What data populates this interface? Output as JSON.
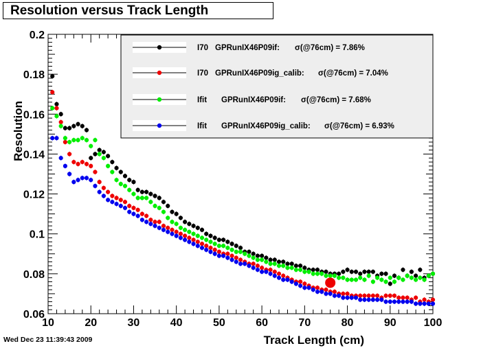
{
  "title": "Resolution versus Track Length",
  "timestamp": "Wed Dec 23 11:39:43 2009",
  "chart_data": {
    "type": "scatter",
    "title": "Resolution versus Track Length",
    "xlabel": "Track Length (cm)",
    "ylabel": "Resolution",
    "xlim": [
      10,
      100
    ],
    "ylim": [
      0.06,
      0.2
    ],
    "xticks": [
      "10",
      "20",
      "30",
      "40",
      "50",
      "60",
      "70",
      "80",
      "90",
      "100"
    ],
    "yticks": [
      "0.06",
      "0.08",
      "0.1",
      "0.12",
      "0.14",
      "0.16",
      "0.18",
      "0.2"
    ],
    "grid": true,
    "legend_position": "top-right",
    "x": [
      11,
      12,
      13,
      14,
      15,
      16,
      17,
      18,
      19,
      20,
      21,
      22,
      23,
      24,
      25,
      26,
      27,
      28,
      29,
      30,
      31,
      32,
      33,
      34,
      35,
      36,
      37,
      38,
      39,
      40,
      41,
      42,
      43,
      44,
      45,
      46,
      47,
      48,
      49,
      50,
      51,
      52,
      53,
      54,
      55,
      56,
      57,
      58,
      59,
      60,
      61,
      62,
      63,
      64,
      65,
      66,
      67,
      68,
      69,
      70,
      71,
      72,
      73,
      74,
      75,
      76,
      77,
      78,
      79,
      80,
      81,
      82,
      83,
      84,
      85,
      86,
      87,
      88,
      89,
      90,
      91,
      92,
      93,
      94,
      95,
      96,
      97,
      98,
      99,
      100
    ],
    "series": [
      {
        "name": "I70",
        "dataset": "GPRunIX46P09if:",
        "sigma_text": "σ(@76cm) =  7.86%",
        "color": "#000000",
        "values": [
          0.179,
          0.165,
          0.16,
          0.153,
          0.153,
          0.154,
          0.155,
          0.154,
          0.152,
          0.138,
          0.14,
          0.142,
          0.141,
          0.139,
          0.136,
          0.133,
          0.131,
          0.129,
          0.127,
          0.126,
          0.122,
          0.121,
          0.121,
          0.12,
          0.119,
          0.118,
          0.116,
          0.114,
          0.111,
          0.11,
          0.108,
          0.106,
          0.105,
          0.104,
          0.103,
          0.102,
          0.1,
          0.099,
          0.098,
          0.097,
          0.097,
          0.096,
          0.095,
          0.094,
          0.093,
          0.091,
          0.091,
          0.09,
          0.089,
          0.089,
          0.088,
          0.087,
          0.087,
          0.086,
          0.086,
          0.085,
          0.085,
          0.084,
          0.084,
          0.083,
          0.082,
          0.082,
          0.082,
          0.081,
          0.081,
          0.08,
          0.08,
          0.08,
          0.081,
          0.082,
          0.081,
          0.081,
          0.08,
          0.081,
          0.081,
          0.081,
          0.079,
          0.08,
          0.08,
          0.075,
          0.079,
          0.078,
          0.082,
          0.079,
          0.081,
          0.079,
          0.082,
          0.078,
          0.079,
          0.08
        ]
      },
      {
        "name": "I70",
        "dataset": "GPRunIX46P09ig_calib:",
        "sigma_text": "σ(@76cm) =  7.04%",
        "color": "#ee0000",
        "values": [
          0.171,
          0.163,
          0.156,
          0.146,
          0.14,
          0.136,
          0.135,
          0.136,
          0.135,
          0.134,
          0.131,
          0.126,
          0.123,
          0.121,
          0.119,
          0.118,
          0.117,
          0.116,
          0.114,
          0.113,
          0.112,
          0.11,
          0.109,
          0.107,
          0.106,
          0.106,
          0.104,
          0.103,
          0.102,
          0.101,
          0.1,
          0.099,
          0.098,
          0.097,
          0.096,
          0.095,
          0.094,
          0.093,
          0.092,
          0.091,
          0.09,
          0.09,
          0.089,
          0.088,
          0.087,
          0.086,
          0.085,
          0.085,
          0.084,
          0.083,
          0.082,
          0.082,
          0.081,
          0.08,
          0.079,
          0.078,
          0.077,
          0.076,
          0.076,
          0.075,
          0.074,
          0.073,
          0.073,
          0.072,
          0.072,
          0.071,
          0.071,
          0.07,
          0.07,
          0.07,
          0.069,
          0.069,
          0.069,
          0.069,
          0.069,
          0.069,
          0.069,
          0.068,
          0.069,
          0.069,
          0.069,
          0.068,
          0.068,
          0.068,
          0.067,
          0.068,
          0.066,
          0.067,
          0.066,
          0.067
        ]
      },
      {
        "name": "Ifit",
        "dataset": "GPRunIX46P09if:",
        "sigma_text": "σ(@76cm) =  7.68%",
        "color": "#00ee00",
        "values": [
          0.163,
          0.159,
          0.154,
          0.148,
          0.146,
          0.147,
          0.147,
          0.148,
          0.147,
          0.144,
          0.147,
          0.14,
          0.138,
          0.134,
          0.131,
          0.127,
          0.125,
          0.124,
          0.122,
          0.12,
          0.118,
          0.118,
          0.118,
          0.116,
          0.114,
          0.113,
          0.111,
          0.108,
          0.106,
          0.105,
          0.103,
          0.102,
          0.101,
          0.1,
          0.099,
          0.098,
          0.097,
          0.096,
          0.095,
          0.094,
          0.094,
          0.093,
          0.092,
          0.091,
          0.091,
          0.09,
          0.089,
          0.088,
          0.087,
          0.087,
          0.086,
          0.085,
          0.085,
          0.084,
          0.084,
          0.083,
          0.083,
          0.082,
          0.082,
          0.081,
          0.081,
          0.08,
          0.08,
          0.08,
          0.079,
          0.079,
          0.079,
          0.078,
          0.078,
          0.077,
          0.077,
          0.077,
          0.078,
          0.077,
          0.079,
          0.076,
          0.078,
          0.077,
          0.076,
          0.078,
          0.076,
          0.078,
          0.077,
          0.079,
          0.078,
          0.077,
          0.078,
          0.077,
          0.079,
          0.08
        ]
      },
      {
        "name": "Ifit",
        "dataset": "GPRunIX46P09ig_calib:",
        "sigma_text": "σ(@76cm) =  6.93%",
        "color": "#0000ee",
        "values": [
          0.148,
          0.148,
          0.138,
          0.134,
          0.13,
          0.126,
          0.127,
          0.128,
          0.128,
          0.127,
          0.124,
          0.121,
          0.119,
          0.117,
          0.116,
          0.115,
          0.114,
          0.113,
          0.111,
          0.11,
          0.109,
          0.107,
          0.106,
          0.105,
          0.104,
          0.103,
          0.102,
          0.101,
          0.1,
          0.099,
          0.098,
          0.097,
          0.096,
          0.095,
          0.094,
          0.093,
          0.092,
          0.091,
          0.09,
          0.089,
          0.089,
          0.088,
          0.087,
          0.086,
          0.085,
          0.085,
          0.084,
          0.083,
          0.082,
          0.081,
          0.081,
          0.08,
          0.079,
          0.078,
          0.077,
          0.077,
          0.076,
          0.075,
          0.074,
          0.073,
          0.073,
          0.072,
          0.071,
          0.071,
          0.07,
          0.07,
          0.069,
          0.069,
          0.068,
          0.068,
          0.068,
          0.068,
          0.067,
          0.067,
          0.067,
          0.067,
          0.067,
          0.067,
          0.066,
          0.066,
          0.066,
          0.066,
          0.066,
          0.066,
          0.066,
          0.065,
          0.065,
          0.065,
          0.065,
          0.065
        ]
      }
    ],
    "highlight_point": {
      "x": 76,
      "y": 0.0755,
      "color": "#ee0000"
    }
  }
}
